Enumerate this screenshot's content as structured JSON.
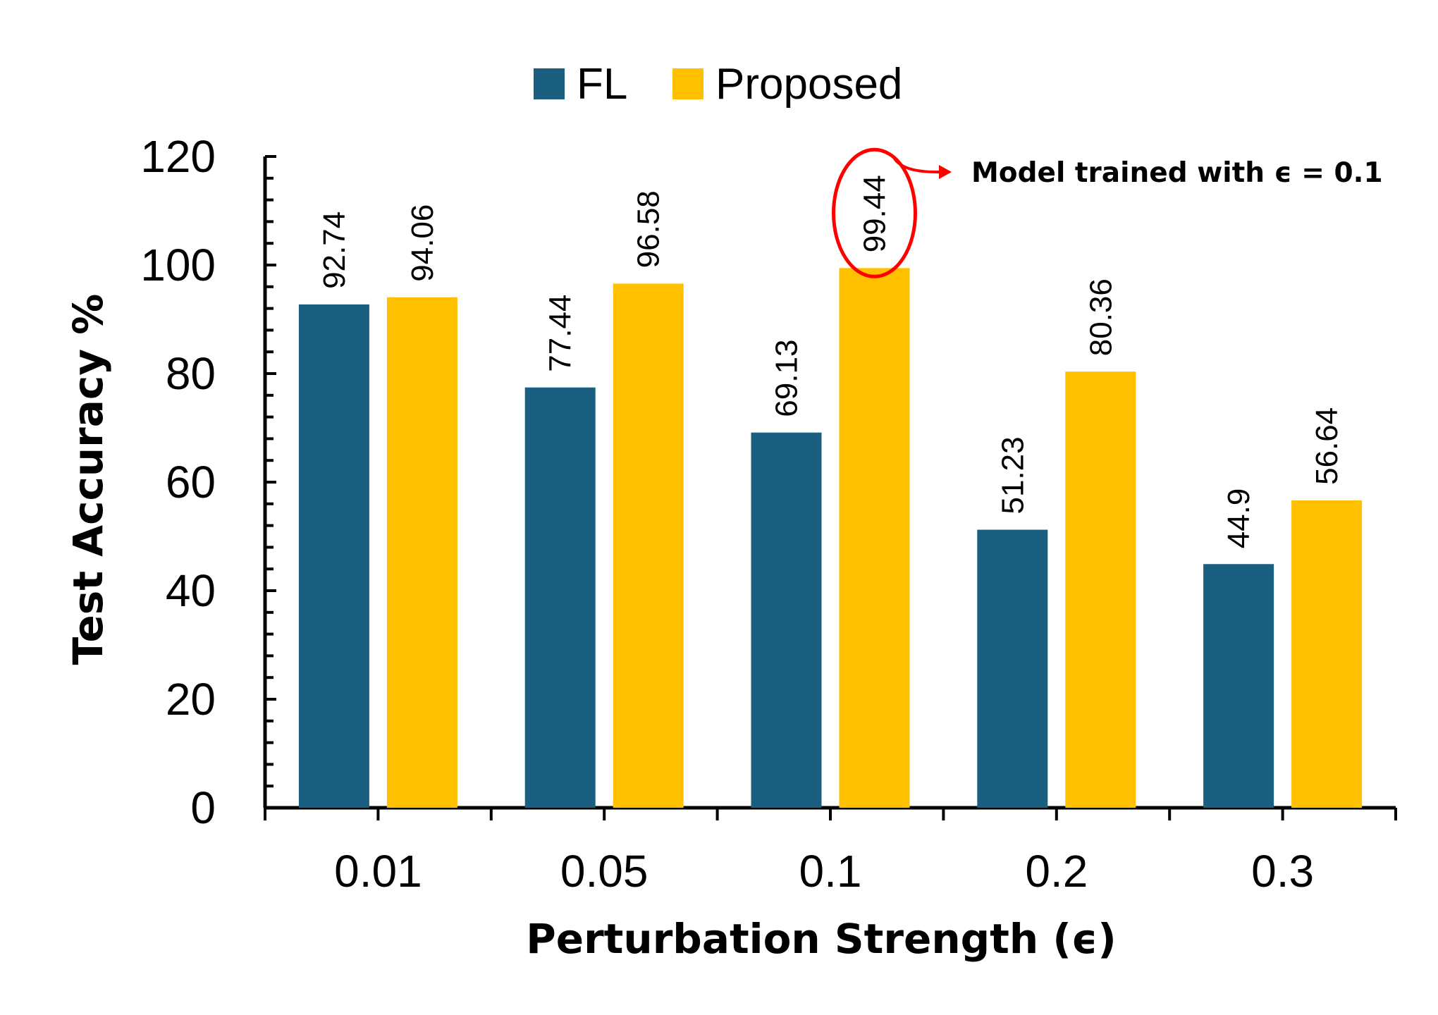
{
  "chart_data": {
    "type": "bar",
    "categories": [
      "0.01",
      "0.05",
      "0.1",
      "0.2",
      "0.3"
    ],
    "series": [
      {
        "name": "FL",
        "values": [
          92.74,
          77.44,
          69.13,
          51.23,
          44.9
        ],
        "color": "#1a5e80"
      },
      {
        "name": "Proposed",
        "values": [
          94.06,
          96.58,
          99.44,
          80.36,
          56.64
        ],
        "color": "#ffc000"
      }
    ],
    "title": "",
    "xlabel": "Perturbation Strength (ϵ)",
    "ylabel": "Test Accuracy %",
    "ylim": [
      0,
      120
    ],
    "yticks": [
      "0",
      "20",
      "40",
      "60",
      "80",
      "100",
      "120"
    ],
    "grid": false,
    "legend": "top-center",
    "data_labels": [
      "92.74",
      "94.06",
      "77.44",
      "96.58",
      "69.13",
      "99.44",
      "51.23",
      "80.36",
      "44.9",
      "56.64"
    ],
    "annotation": {
      "text": "Model trained with ϵ = 0.1",
      "target_series": "Proposed",
      "target_category": "0.1",
      "color": "#ff0000"
    }
  }
}
